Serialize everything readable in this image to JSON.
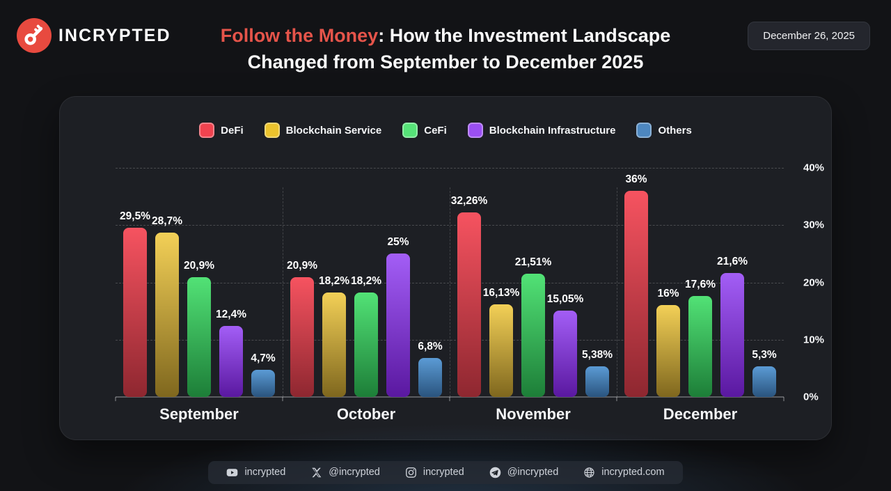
{
  "header": {
    "brand": "INCRYPTED",
    "title_highlight": "Follow the Money",
    "title_rest": ": How the Investment Landscape",
    "title_line2": "Changed from September to December 2025",
    "date_badge": "December 26, 2025"
  },
  "colors": {
    "accent_red": "#e5544a",
    "logo_red": "#e84a3f",
    "page_bg": "#121316",
    "card_bg": "#1d1f24"
  },
  "chart_data": {
    "type": "bar",
    "title": "Follow the Money: How the Investment Landscape Changed from September to December 2025",
    "categories": [
      "September",
      "October",
      "November",
      "December"
    ],
    "series": [
      {
        "name": "DeFi",
        "color": "#f0434f",
        "color_top": "#f65360",
        "color_bottom": "#8e2730",
        "values": [
          29.5,
          20.9,
          32.26,
          36
        ],
        "labels": [
          "29,5%",
          "20,9%",
          "32,26%",
          "36%"
        ]
      },
      {
        "name": "Blockchain Service",
        "color": "#ecc32d",
        "color_top": "#f3d057",
        "color_bottom": "#7f671e",
        "values": [
          28.7,
          18.2,
          16.13,
          16
        ],
        "labels": [
          "28,7%",
          "18,2%",
          "16,13%",
          "16%"
        ]
      },
      {
        "name": "CeFi",
        "color": "#56e378",
        "color_top": "#52e276",
        "color_bottom": "#1d7e38",
        "values": [
          20.9,
          18.2,
          21.51,
          17.6
        ],
        "labels": [
          "20,9%",
          "18,2%",
          "21,51%",
          "17,6%"
        ]
      },
      {
        "name": "Blockchain Infrastructure",
        "color": "#9b4ff3",
        "color_top": "#a35ef6",
        "color_bottom": "#5a18a0",
        "values": [
          12.4,
          25,
          15.05,
          21.6
        ],
        "labels": [
          "12,4%",
          "25%",
          "15,05%",
          "21,6%"
        ]
      },
      {
        "name": "Others",
        "color": "#4d87c0",
        "color_top": "#5b9bd5",
        "color_bottom": "#2a547e",
        "values": [
          4.7,
          6.8,
          5.38,
          5.3
        ],
        "labels": [
          "4,7%",
          "6,8%",
          "5,38%",
          "5,3%"
        ]
      }
    ],
    "ylim": [
      0,
      40
    ],
    "yticks": [
      {
        "label": "40%",
        "value": 40
      },
      {
        "label": "30%",
        "value": 30
      },
      {
        "label": "20%",
        "value": 20
      },
      {
        "label": "10%",
        "value": 10
      },
      {
        "label": "0%",
        "value": 0
      }
    ],
    "legend_position": "top",
    "grid": "horizontal-dashed"
  },
  "footer": {
    "items": [
      {
        "icon": "youtube-icon",
        "text": "incrypted"
      },
      {
        "icon": "x-icon",
        "text": "@incrypted"
      },
      {
        "icon": "instagram-icon",
        "text": "incrypted"
      },
      {
        "icon": "telegram-icon",
        "text": "@incrypted"
      },
      {
        "icon": "globe-icon",
        "text": "incrypted.com"
      }
    ]
  }
}
